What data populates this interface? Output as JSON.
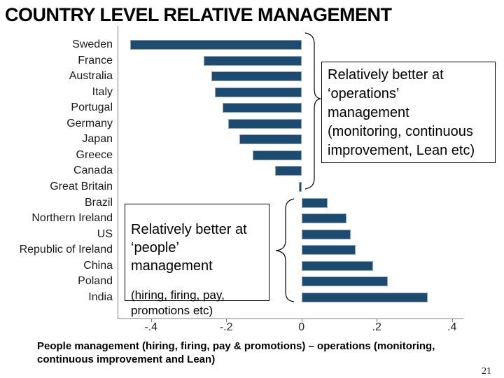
{
  "slide": {
    "title": "COUNTRY LEVEL RELATIVE MANAGEMENT",
    "caption": "People management (hiring, firing, pay & promotions) – operations (monitoring,\ncontinuous improvement and Lean)",
    "page_number": "21"
  },
  "annotations": {
    "operations_box": "Relatively better at\n‘operations’\nmanagement\n(monitoring, continuous\nimprovement, Lean etc)",
    "people_box_main": "Relatively better at\n‘people’\nmanagement",
    "people_box_sub": "(hiring, firing, pay,\npromotions etc)"
  },
  "colors": {
    "bar_fill": "#1d4b6f",
    "bar_outline": "#8fa6ba",
    "axis": "#808080"
  },
  "chart_data": {
    "type": "bar",
    "orientation": "horizontal",
    "title": "COUNTRY LEVEL RELATIVE MANAGEMENT",
    "xlabel": "",
    "ylabel": "",
    "categories": [
      "Sweden",
      "France",
      "Australia",
      "Italy",
      "Portugal",
      "Germany",
      "Japan",
      "Greece",
      "Canada",
      "Great Britain",
      "Brazil",
      "Northern Ireland",
      "US",
      "Republic of Ireland",
      "China",
      "Poland",
      "India"
    ],
    "values": [
      -0.455,
      -0.26,
      -0.24,
      -0.23,
      -0.21,
      -0.195,
      -0.165,
      -0.13,
      -0.07,
      -0.007,
      0.07,
      0.12,
      0.13,
      0.143,
      0.19,
      0.23,
      0.335
    ],
    "tick_values": [
      -0.4,
      -0.2,
      0,
      0.2,
      0.4
    ],
    "tick_labels": [
      "-.4",
      "-.2",
      "0",
      ".2",
      ".4"
    ],
    "xlim": [
      -0.49,
      0.43
    ],
    "grid": false,
    "legend": false,
    "notes": "Bars left of zero = relatively better at operations management; bars right of zero = relatively better at people management"
  }
}
